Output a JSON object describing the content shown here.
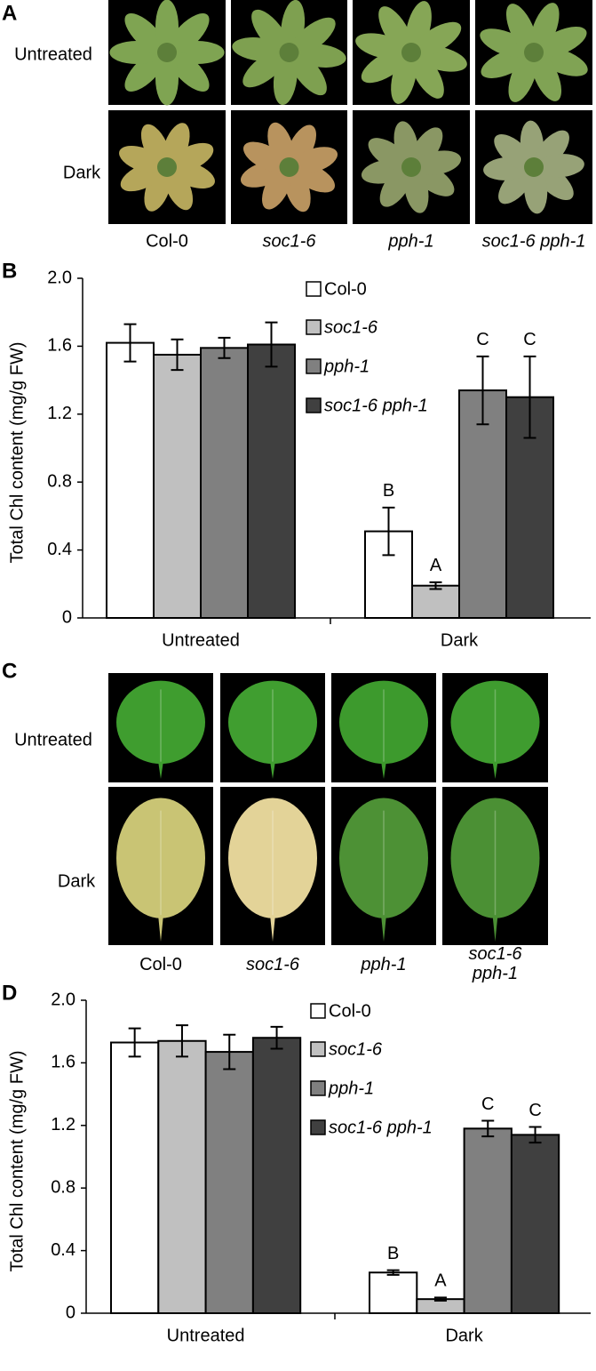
{
  "panel_labels": [
    "A",
    "B",
    "C",
    "D"
  ],
  "panel_a": {
    "row_labels": [
      "Untreated",
      "Dark"
    ],
    "column_labels": [
      "Col-0",
      "soc1-6",
      "pph-1",
      "soc1-6 pph-1"
    ]
  },
  "panel_c": {
    "row_labels": [
      "Untreated",
      "Dark"
    ],
    "column_labels": [
      "Col-0",
      "soc1-6",
      "pph-1",
      "soc1-6 pph-1"
    ]
  },
  "chart_data": [
    {
      "type": "bar",
      "ylabel": "Total Chl content (mg/g FW)",
      "categories": [
        "Untreated",
        "Dark"
      ],
      "ylim": [
        0,
        2
      ],
      "yticks": [
        0,
        0.4,
        0.8,
        1.2,
        1.6,
        {
          "value": 2,
          "label": "2.0"
        }
      ],
      "series": [
        {
          "name": "Col-0",
          "color": "#ffffff",
          "values": [
            1.62,
            0.51
          ],
          "errors": [
            0.11,
            0.14
          ],
          "letters": [
            null,
            "B"
          ]
        },
        {
          "name": "soc1-6",
          "color": "#c0c0c0",
          "values": [
            1.55,
            0.19
          ],
          "errors": [
            0.09,
            0.02
          ],
          "letters": [
            null,
            "A"
          ]
        },
        {
          "name": "pph-1",
          "color": "#808080",
          "values": [
            1.59,
            1.34
          ],
          "errors": [
            0.06,
            0.2
          ],
          "letters": [
            null,
            "C"
          ]
        },
        {
          "name": "soc1-6 pph-1",
          "color": "#404040",
          "values": [
            1.61,
            1.3
          ],
          "errors": [
            0.13,
            0.24
          ],
          "letters": [
            null,
            "C"
          ]
        }
      ]
    },
    {
      "type": "bar",
      "ylabel": "Total Chl content (mg/g FW)",
      "categories": [
        "Untreated",
        "Dark"
      ],
      "ylim": [
        0,
        2
      ],
      "yticks": [
        0,
        0.4,
        0.8,
        1.2,
        1.6,
        {
          "value": 2,
          "label": "2.0"
        }
      ],
      "series": [
        {
          "name": "Col-0",
          "color": "#ffffff",
          "values": [
            1.73,
            0.26
          ],
          "errors": [
            0.09,
            0.015
          ],
          "letters": [
            null,
            "B"
          ]
        },
        {
          "name": "soc1-6",
          "color": "#c0c0c0",
          "values": [
            1.74,
            0.09
          ],
          "errors": [
            0.1,
            0.01
          ],
          "letters": [
            null,
            "A"
          ]
        },
        {
          "name": "pph-1",
          "color": "#808080",
          "values": [
            1.67,
            1.18
          ],
          "errors": [
            0.11,
            0.05
          ],
          "letters": [
            null,
            "C"
          ]
        },
        {
          "name": "soc1-6 pph-1",
          "color": "#404040",
          "values": [
            1.76,
            1.14
          ],
          "errors": [
            0.07,
            0.05
          ],
          "letters": [
            null,
            "C"
          ]
        }
      ]
    }
  ]
}
